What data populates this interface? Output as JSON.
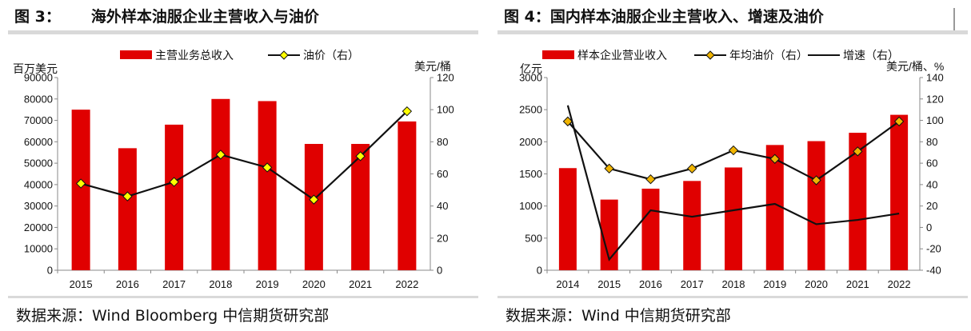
{
  "chart_data": [
    {
      "type": "bar",
      "title_prefix": "图 3：",
      "title": "海外样本油服企业主营收入与油价",
      "source": "数据来源：Wind Bloomberg 中信期货研究部",
      "categories": [
        "2015",
        "2016",
        "2017",
        "2018",
        "2019",
        "2020",
        "2021",
        "2022"
      ],
      "y_left": {
        "unit": "百万美元",
        "ylim": [
          0,
          90000
        ],
        "ticks": [
          "0",
          "10000",
          "20000",
          "30000",
          "40000",
          "50000",
          "60000",
          "70000",
          "80000",
          "90000"
        ]
      },
      "y_right": {
        "unit": "美元/桶",
        "ylim": [
          0,
          120
        ],
        "ticks": [
          "0",
          "20",
          "40",
          "60",
          "80",
          "100",
          "120"
        ]
      },
      "series": [
        {
          "name": "主营业务总收入",
          "kind": "bar",
          "axis": "left",
          "color": "#e00000",
          "values": [
            75000,
            57000,
            68000,
            80000,
            79000,
            59000,
            59000,
            69500
          ]
        },
        {
          "name": "油价（右）",
          "kind": "line-marker",
          "axis": "right",
          "color": "#111111",
          "marker_color": "#ffff00",
          "values": [
            54,
            46,
            55,
            72,
            64,
            44,
            71,
            99
          ]
        }
      ],
      "grid": false,
      "legend_position": "top"
    },
    {
      "type": "bar",
      "title_prefix": "图 4：",
      "title": "国内样本油服企业主营收入、增速及油价",
      "source": "数据来源：Wind 中信期货研究部",
      "categories": [
        "2014",
        "2015",
        "2016",
        "2017",
        "2018",
        "2019",
        "2020",
        "2021",
        "2022"
      ],
      "y_left": {
        "unit": "亿元",
        "ylim": [
          0,
          3000
        ],
        "ticks": [
          "0",
          "500",
          "1000",
          "1500",
          "2000",
          "2500",
          "3000"
        ]
      },
      "y_right": {
        "unit": "美元/桶、%",
        "ylim": [
          -40,
          140
        ],
        "ticks": [
          "-40",
          "-20",
          "0",
          "20",
          "40",
          "60",
          "80",
          "100",
          "120",
          "140"
        ]
      },
      "series": [
        {
          "name": "样本企业营业收入",
          "kind": "bar",
          "axis": "left",
          "color": "#e00000",
          "values": [
            1590,
            1100,
            1270,
            1390,
            1600,
            1950,
            2010,
            2140,
            2420
          ]
        },
        {
          "name": "年均油价（右）",
          "kind": "line-marker",
          "axis": "right",
          "color": "#111111",
          "marker_color": "#f0b400",
          "values": [
            99,
            55,
            45,
            55,
            72,
            64,
            44,
            71,
            99
          ]
        },
        {
          "name": "增速（右）",
          "kind": "line",
          "axis": "right",
          "color": "#111111",
          "values": [
            114,
            -30,
            16,
            10,
            16,
            22,
            3,
            7,
            13
          ]
        }
      ],
      "grid": false,
      "legend_position": "top"
    }
  ]
}
